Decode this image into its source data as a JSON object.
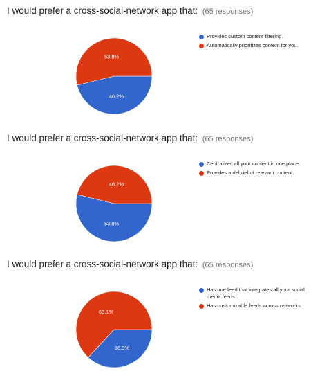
{
  "colors": {
    "blue": "#3366cc",
    "red": "#dc3912"
  },
  "chart_data": [
    {
      "type": "pie",
      "title": "I would prefer a cross-social-network app that:",
      "responses": "(65 responses)",
      "legend_position": "right",
      "slices": [
        {
          "name": "Provides custom content filtering.",
          "value": 46.2,
          "label": "46.2%",
          "color": "#3366cc"
        },
        {
          "name": "Automatically prioritizes content for you.",
          "value": 53.8,
          "label": "53.8%",
          "color": "#dc3912"
        }
      ]
    },
    {
      "type": "pie",
      "title": "I would prefer a cross-social-network app that:",
      "responses": "(65 responses)",
      "legend_position": "right",
      "slices": [
        {
          "name": "Centralizes all your content in one place.",
          "value": 53.8,
          "label": "53.8%",
          "color": "#3366cc"
        },
        {
          "name": "Provides a debrief of relevant content.",
          "value": 46.2,
          "label": "46.2%",
          "color": "#dc3912"
        }
      ]
    },
    {
      "type": "pie",
      "title": "I would prefer a cross-social-network app that:",
      "responses": "(65 responses)",
      "legend_position": "right",
      "slices": [
        {
          "name": "Has one feed that integrates all your social media feeds.",
          "value": 36.9,
          "label": "36.9%",
          "color": "#3366cc"
        },
        {
          "name": "Has customizable feeds across networks.",
          "value": 63.1,
          "label": "63.1%",
          "color": "#dc3912"
        }
      ]
    }
  ]
}
